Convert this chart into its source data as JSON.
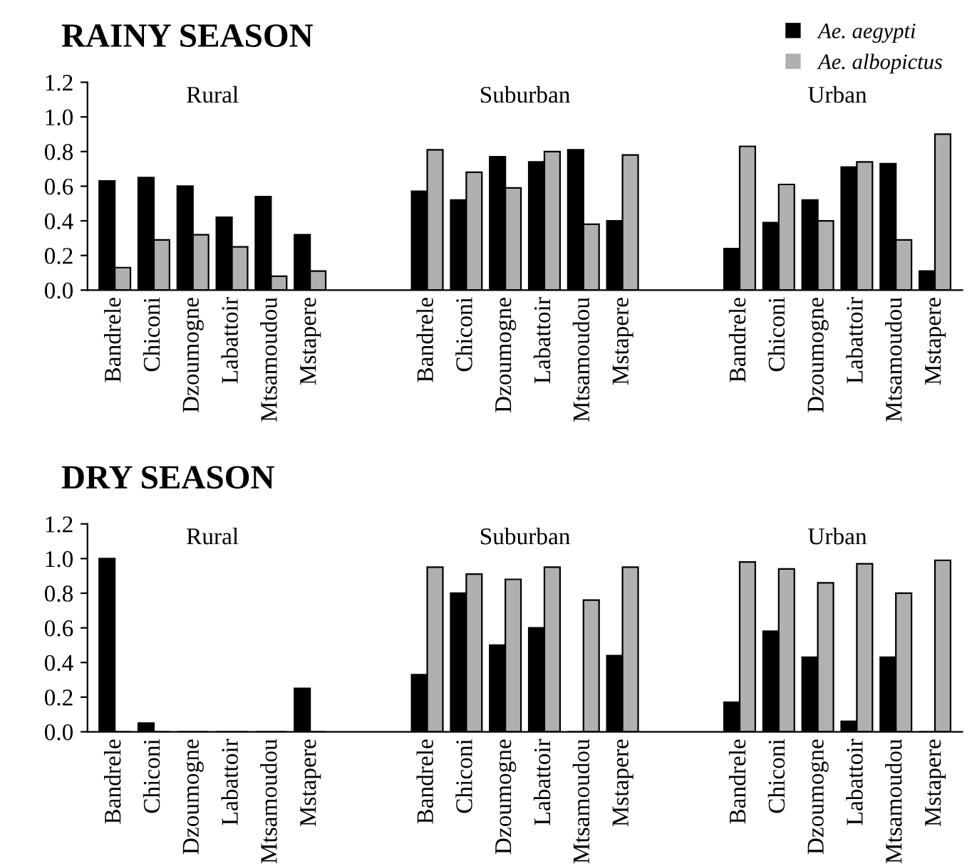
{
  "chart_data": [
    {
      "type": "bar",
      "title": "RAINY SEASON",
      "categories": [
        "Bandrele",
        "Chiconi",
        "Dzoumogne",
        "Labattoir",
        "Mtsamoudou",
        "Mstapere",
        null,
        null,
        "Bandrele",
        "Chiconi",
        "Dzoumogne",
        "Labattoir",
        "Mtsamoudou",
        "Mstapere",
        null,
        null,
        "Bandrele",
        "Chiconi",
        "Dzoumogne",
        "Labattoir",
        "Mtsamoudou",
        "Mstapere"
      ],
      "series": [
        {
          "name": "Ae. aegypti",
          "color": "#000000",
          "values": [
            0.63,
            0.65,
            0.6,
            0.42,
            0.54,
            0.32,
            null,
            null,
            0.57,
            0.52,
            0.77,
            0.74,
            0.81,
            0.4,
            null,
            null,
            0.24,
            0.39,
            0.52,
            0.71,
            0.73,
            0.11
          ]
        },
        {
          "name": "Ae. albopictus",
          "color": "#b0b0b0",
          "values": [
            0.13,
            0.29,
            0.32,
            0.25,
            0.08,
            0.11,
            null,
            null,
            0.81,
            0.68,
            0.59,
            0.8,
            0.38,
            0.78,
            null,
            null,
            0.83,
            0.61,
            0.4,
            0.74,
            0.29,
            0.9
          ]
        }
      ],
      "annotations": [
        "Rural",
        "Suburban",
        "Urban"
      ],
      "ylim": [
        0,
        1.2
      ],
      "yticks": [
        {
          "value": 0,
          "label": "0.0"
        },
        {
          "value": 0.2,
          "label": "0.2"
        },
        {
          "value": 0.4,
          "label": "0.4"
        },
        {
          "value": 0.6,
          "label": "0.6"
        },
        {
          "value": 0.8,
          "label": "0.8"
        },
        {
          "value": 1,
          "label": "1.0"
        },
        {
          "value": 1.2,
          "label": "1.2"
        }
      ],
      "grid": false,
      "legend": "top right"
    },
    {
      "type": "bar",
      "title": "DRY SEASON",
      "categories": [
        "Bandrele",
        "Chiconi",
        "Dzoumogne",
        "Labattoir",
        "Mtsamoudou",
        "Mstapere",
        null,
        null,
        "Bandrele",
        "Chiconi",
        "Dzoumogne",
        "Labattoir",
        "Mtsamoudou",
        "Mstapere",
        null,
        null,
        "Bandrele",
        "Chiconi",
        "Dzoumogne",
        "Labattoir",
        "Mtsamoudou",
        "Mstapere"
      ],
      "series": [
        {
          "color": "#000000",
          "values": [
            1.0,
            0.05,
            0,
            0,
            0,
            0.25,
            null,
            null,
            0.33,
            0.8,
            0.5,
            0.6,
            0,
            0.44,
            null,
            null,
            0.17,
            0.58,
            0.43,
            0.06,
            0.43,
            0
          ]
        },
        {
          "color": "#b0b0b0",
          "values": [
            0,
            0,
            0,
            0,
            0,
            0,
            null,
            null,
            0.95,
            0.91,
            0.88,
            0.95,
            0.76,
            0.95,
            null,
            null,
            0.98,
            0.94,
            0.86,
            0.97,
            0.8,
            0.99
          ]
        }
      ],
      "annotations": [
        "Rural",
        "Suburban",
        "Urban"
      ],
      "ylim": [
        0,
        1.2
      ],
      "yticks": [
        {
          "value": 0,
          "label": "0.0"
        },
        {
          "value": 0.2,
          "label": "0.2"
        },
        {
          "value": 0.4,
          "label": "0.4"
        },
        {
          "value": 0.6,
          "label": "0.6"
        },
        {
          "value": 0.8,
          "label": "0.8"
        },
        {
          "value": 1,
          "label": "1.0"
        },
        {
          "value": 1.2,
          "label": "1.2"
        }
      ],
      "grid": false
    }
  ]
}
